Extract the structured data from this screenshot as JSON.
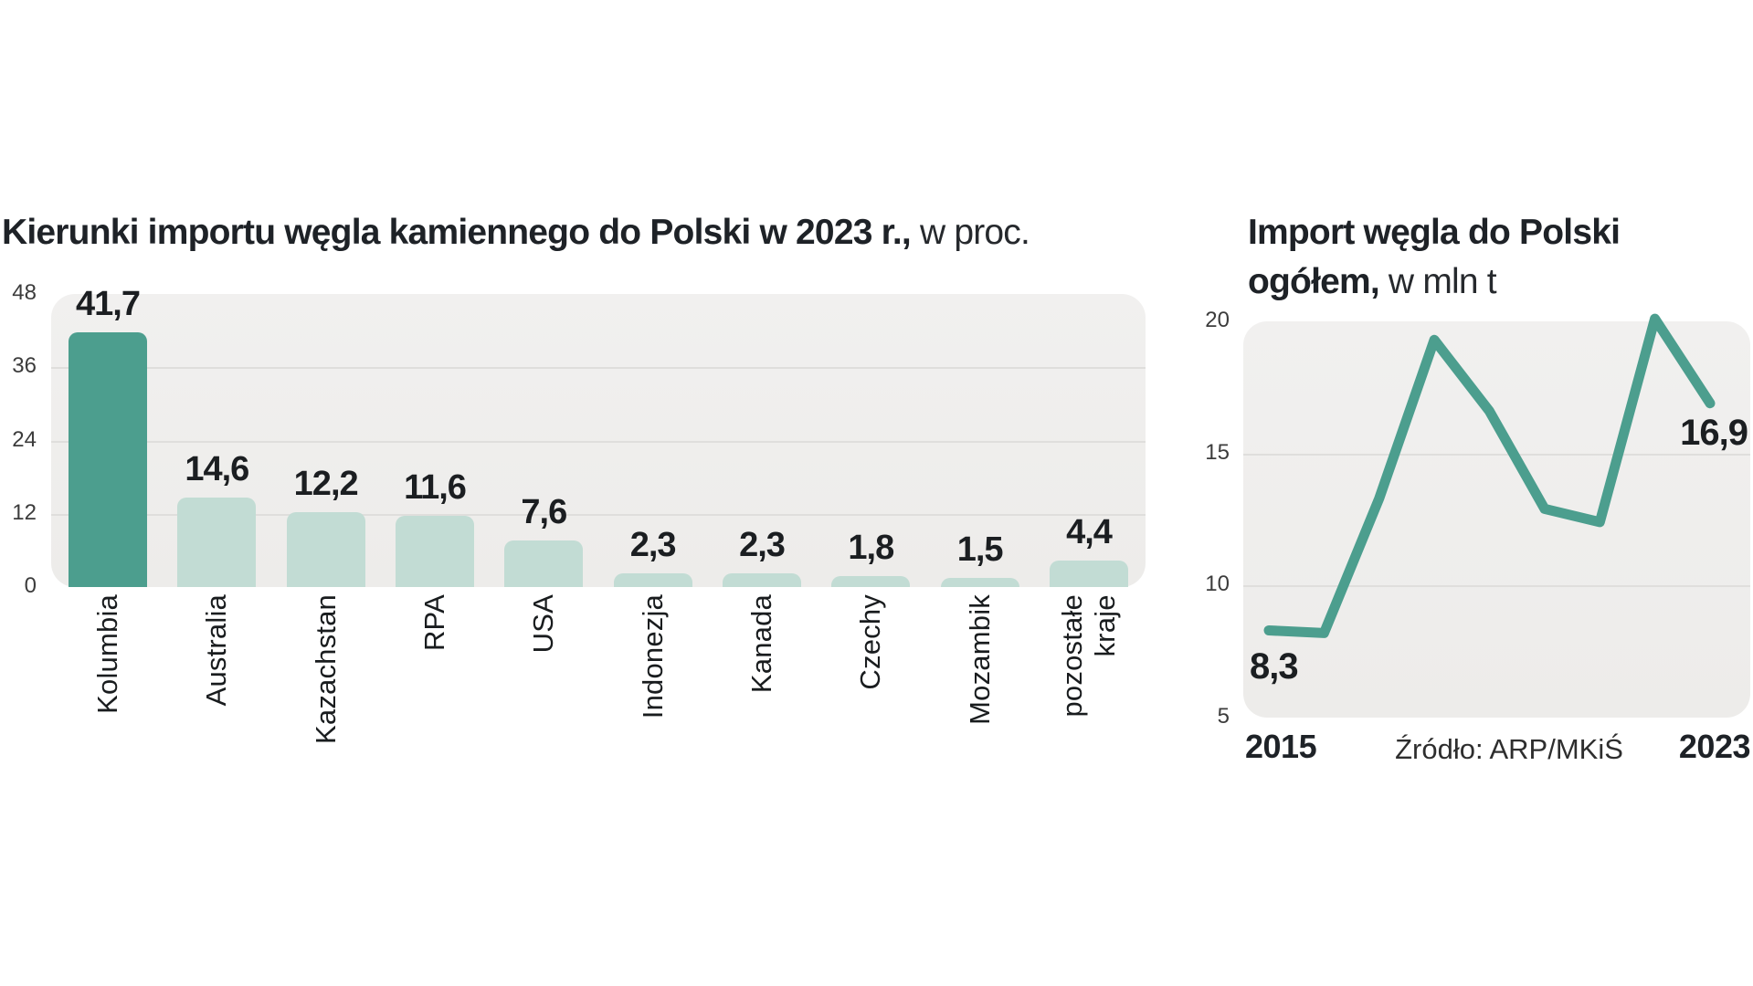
{
  "colors": {
    "accent_teal": "#4C9E8E",
    "bar_light": "#C2DCD4",
    "panel_bg": "#EFEEED",
    "gridline": "#DFDEDC",
    "text_dark": "#1E2227",
    "text_axis": "#3C3C3C"
  },
  "chart_data": [
    {
      "type": "bar",
      "title": "Kierunki importu węgla kamiennego do Polski w 2023 r.,",
      "subtitle": "w proc.",
      "categories": [
        "Kolumbia",
        "Australia",
        "Kazachstan",
        "RPA",
        "USA",
        "Indonezja",
        "Kanada",
        "Czechy",
        "Mozambik",
        "pozostałe\nkraje"
      ],
      "values": [
        41.7,
        14.6,
        12.2,
        11.6,
        7.6,
        2.3,
        2.3,
        1.8,
        1.5,
        4.4
      ],
      "value_labels": [
        "41,7",
        "14,6",
        "12,2",
        "11,6",
        "7,6",
        "2,3",
        "2,3",
        "1,8",
        "1,5",
        "4,4"
      ],
      "ylim": [
        0,
        48
      ],
      "yticks": [
        48,
        36,
        24,
        12,
        0
      ],
      "grid": true,
      "legend": "none",
      "highlight_index": 0
    },
    {
      "type": "line",
      "title": "Import węgla do Polski ogółem,",
      "subtitle": "w mln t",
      "x": [
        2015,
        2016,
        2017,
        2018,
        2019,
        2020,
        2021,
        2022,
        2023
      ],
      "values": [
        8.3,
        8.2,
        13.3,
        19.3,
        16.6,
        12.9,
        12.4,
        20.1,
        16.9
      ],
      "ylim": [
        5,
        20
      ],
      "yticks": [
        20,
        15,
        10,
        5
      ],
      "grid": true,
      "first_point_label": "8,3",
      "last_point_label": "16,9",
      "x_axis_labels": [
        "2015",
        "2023"
      ],
      "source": "Źródło: ARP/MKiŚ"
    }
  ]
}
